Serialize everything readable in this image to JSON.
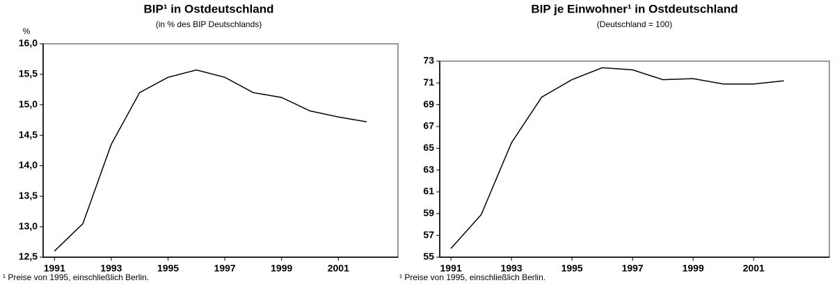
{
  "chart_data": [
    {
      "type": "line",
      "title": "BIP¹ in Ostdeutschland",
      "subtitle": "(in % des BIP Deutschlands)",
      "y_label": "%",
      "x": [
        1991,
        1992,
        1993,
        1994,
        1995,
        1996,
        1997,
        1998,
        1999,
        2000,
        2001,
        2002
      ],
      "values": [
        12.6,
        13.05,
        14.35,
        15.2,
        15.45,
        15.57,
        15.45,
        15.2,
        15.12,
        14.9,
        14.8,
        14.72
      ],
      "color": "#000000",
      "xlim": [
        1990.6,
        2003.1
      ],
      "xticks": [
        1991,
        1993,
        1995,
        1997,
        1999,
        2001
      ],
      "ylim": [
        12.5,
        16.0
      ],
      "yticks": [
        {
          "value": 12.5,
          "label": "12,5"
        },
        {
          "value": 13.0,
          "label": "13,0"
        },
        {
          "value": 13.5,
          "label": "13,5"
        },
        {
          "value": 14.0,
          "label": "14,0"
        },
        {
          "value": 14.5,
          "label": "14,5"
        },
        {
          "value": 15.0,
          "label": "15,0"
        },
        {
          "value": 15.5,
          "label": "15,5"
        },
        {
          "value": 16.0,
          "label": "16,0"
        }
      ],
      "footnote": "¹ Preise von 1995, einschließlich Berlin."
    },
    {
      "type": "line",
      "title": "BIP je Einwohner¹ in Ostdeutschland",
      "subtitle": "(Deutschland = 100)",
      "x": [
        1991,
        1992,
        1993,
        1994,
        1995,
        1996,
        1997,
        1998,
        1999,
        2000,
        2001,
        2002
      ],
      "values": [
        55.8,
        58.9,
        65.5,
        69.7,
        71.3,
        72.4,
        72.2,
        71.3,
        71.4,
        70.9,
        70.9,
        71.2
      ],
      "color": "#000000",
      "xlim": [
        1990.63,
        2003.5
      ],
      "xticks": [
        1991,
        1993,
        1995,
        1997,
        1999,
        2001
      ],
      "ylim": [
        55,
        73
      ],
      "yticks": [
        55,
        57,
        59,
        61,
        63,
        65,
        67,
        69,
        71,
        73
      ],
      "footnote": "¹ Preise von 1995, einschließlich Berlin."
    }
  ]
}
